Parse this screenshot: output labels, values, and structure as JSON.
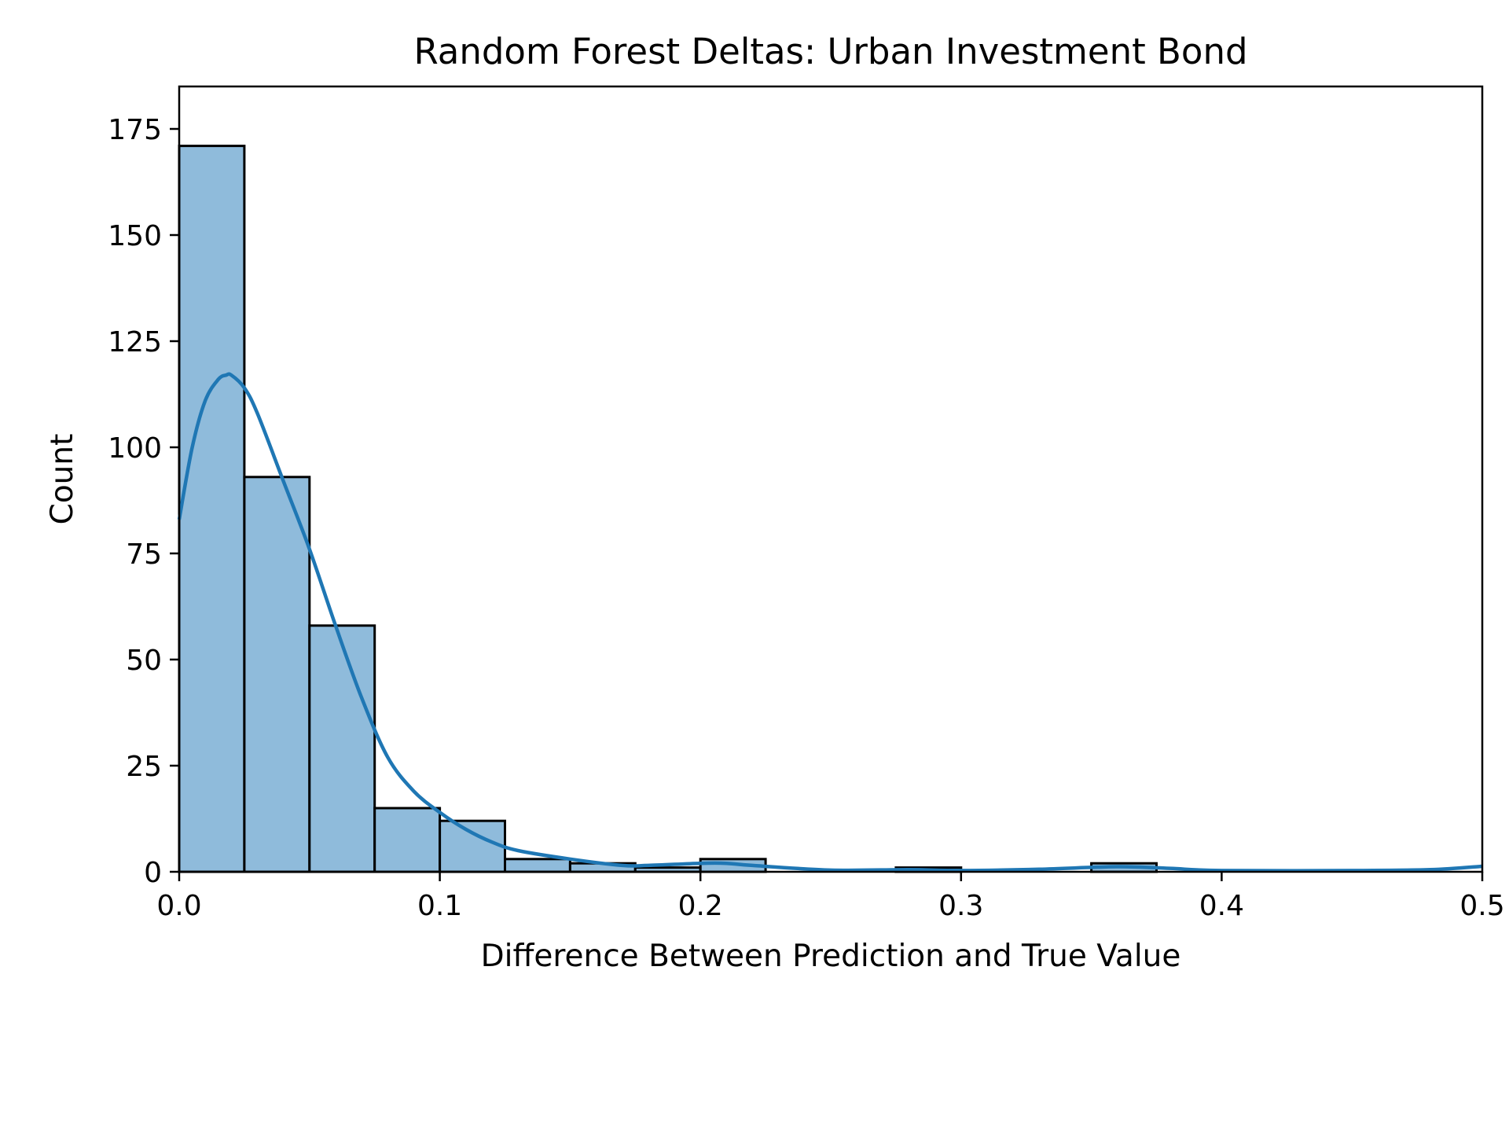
{
  "chart_data": {
    "type": "bar",
    "title": "Random Forest Deltas: Urban Investment Bond",
    "xlabel": "Difference Between Prediction and True Value",
    "ylabel": "Count",
    "xlim": [
      0.0,
      0.5
    ],
    "ylim": [
      0,
      185
    ],
    "x_ticks": [
      "0.0",
      "0.1",
      "0.2",
      "0.3",
      "0.4",
      "0.5"
    ],
    "y_ticks": [
      "0",
      "25",
      "50",
      "75",
      "100",
      "125",
      "150",
      "175"
    ],
    "grid": false,
    "bin_width": 0.025,
    "bins": [
      {
        "start": 0.0,
        "end": 0.025,
        "count": 171
      },
      {
        "start": 0.025,
        "end": 0.05,
        "count": 93
      },
      {
        "start": 0.05,
        "end": 0.075,
        "count": 58
      },
      {
        "start": 0.075,
        "end": 0.1,
        "count": 15
      },
      {
        "start": 0.1,
        "end": 0.125,
        "count": 12
      },
      {
        "start": 0.125,
        "end": 0.15,
        "count": 3
      },
      {
        "start": 0.15,
        "end": 0.175,
        "count": 2
      },
      {
        "start": 0.175,
        "end": 0.2,
        "count": 1
      },
      {
        "start": 0.2,
        "end": 0.225,
        "count": 3
      },
      {
        "start": 0.225,
        "end": 0.25,
        "count": 0
      },
      {
        "start": 0.25,
        "end": 0.275,
        "count": 0
      },
      {
        "start": 0.275,
        "end": 0.3,
        "count": 1
      },
      {
        "start": 0.3,
        "end": 0.325,
        "count": 0
      },
      {
        "start": 0.325,
        "end": 0.35,
        "count": 0
      },
      {
        "start": 0.35,
        "end": 0.375,
        "count": 2
      },
      {
        "start": 0.375,
        "end": 0.4,
        "count": 0
      },
      {
        "start": 0.4,
        "end": 0.425,
        "count": 0
      },
      {
        "start": 0.425,
        "end": 0.45,
        "count": 0
      },
      {
        "start": 0.45,
        "end": 0.475,
        "count": 0
      },
      {
        "start": 0.475,
        "end": 0.5,
        "count": 0
      }
    ],
    "kde": {
      "x": [
        0.0,
        0.005,
        0.01,
        0.015,
        0.018,
        0.02,
        0.025,
        0.03,
        0.04,
        0.05,
        0.06,
        0.07,
        0.08,
        0.09,
        0.1,
        0.11,
        0.12,
        0.13,
        0.15,
        0.17,
        0.18,
        0.2,
        0.21,
        0.22,
        0.25,
        0.28,
        0.3,
        0.33,
        0.36,
        0.38,
        0.4,
        0.45,
        0.48,
        0.5
      ],
      "y": [
        83,
        100,
        111,
        116,
        117,
        117,
        114,
        108,
        92,
        76,
        58,
        41,
        27,
        19,
        14,
        10,
        7,
        5,
        3,
        1.5,
        1.5,
        2,
        2,
        1.5,
        0.4,
        0.5,
        0.3,
        0.6,
        1.2,
        0.8,
        0.3,
        0.3,
        0.5,
        1.3
      ]
    },
    "colors": {
      "bar_fill": "#8fbbdb",
      "bar_edge": "#000000",
      "kde_line": "#1f77b4"
    }
  }
}
